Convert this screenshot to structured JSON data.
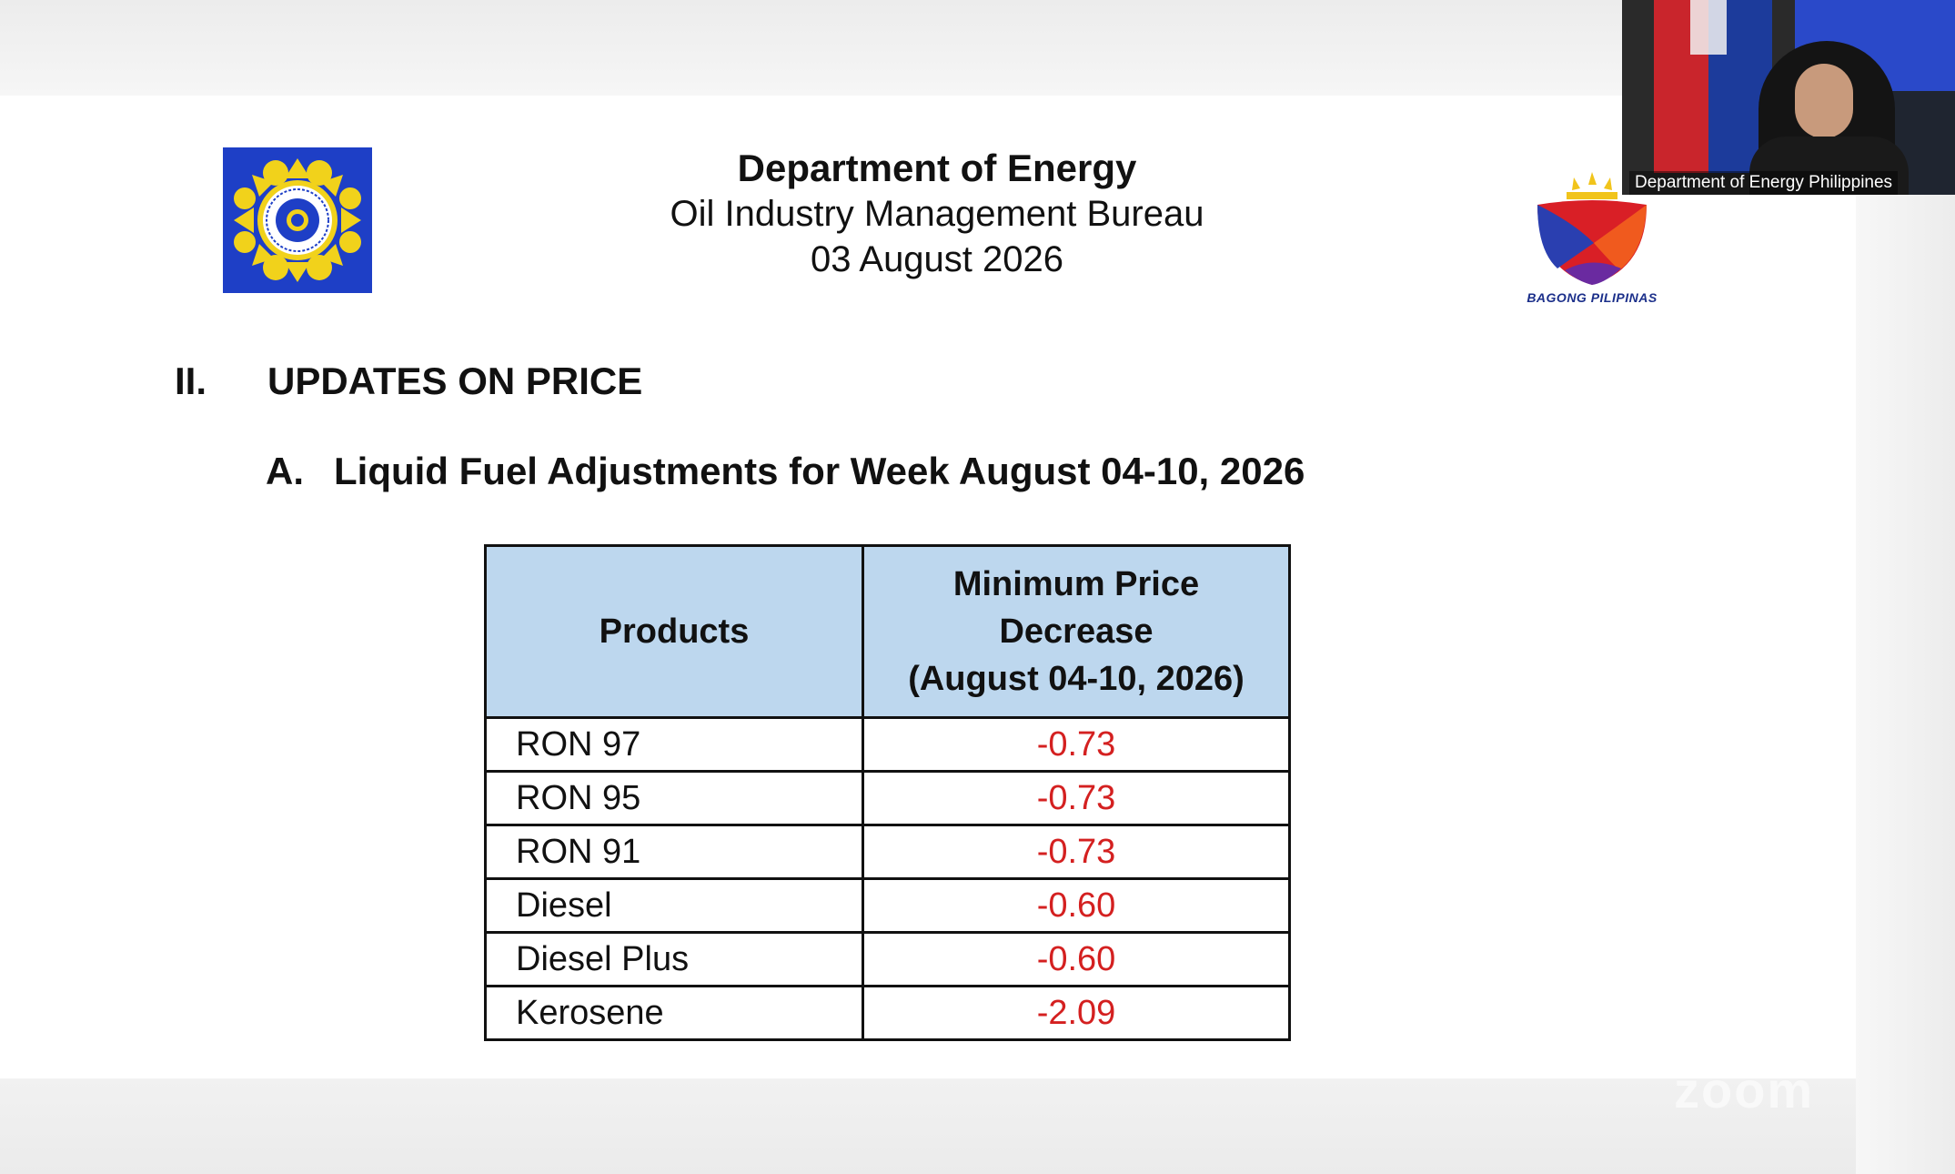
{
  "header": {
    "department": "Department of Energy",
    "bureau": "Oil Industry Management Bureau",
    "date": "03 August 2026"
  },
  "logos": {
    "left": "doe-seal-icon",
    "right": "bagong-pilipinas-logo-icon",
    "right_text": "BAGONG PILIPINAS",
    "doe_blue": "#1e3fc6",
    "doe_yellow": "#f1d21b"
  },
  "section": {
    "number": "II.",
    "title": "UPDATES ON PRICE"
  },
  "subsection": {
    "letter": "A.",
    "title": "Liquid Fuel Adjustments for Week August 04-10, 2026"
  },
  "table": {
    "header_products": "Products",
    "header_decrease_line1": "Minimum Price",
    "header_decrease_line2": "Decrease",
    "header_decrease_line3": "(August 04-10, 2026)",
    "header_bg": "#bdd7ee",
    "value_color": "#d42020",
    "rows": [
      {
        "product": "RON 97",
        "value": "-0.73"
      },
      {
        "product": "RON 95",
        "value": "-0.73"
      },
      {
        "product": "RON 91",
        "value": "-0.73"
      },
      {
        "product": "Diesel",
        "value": "-0.60"
      },
      {
        "product": "Diesel Plus",
        "value": "-0.60"
      },
      {
        "product": "Kerosene",
        "value": "-2.09"
      }
    ]
  },
  "video": {
    "caption": "Department of Energy Philippines"
  },
  "watermark": "zoom"
}
